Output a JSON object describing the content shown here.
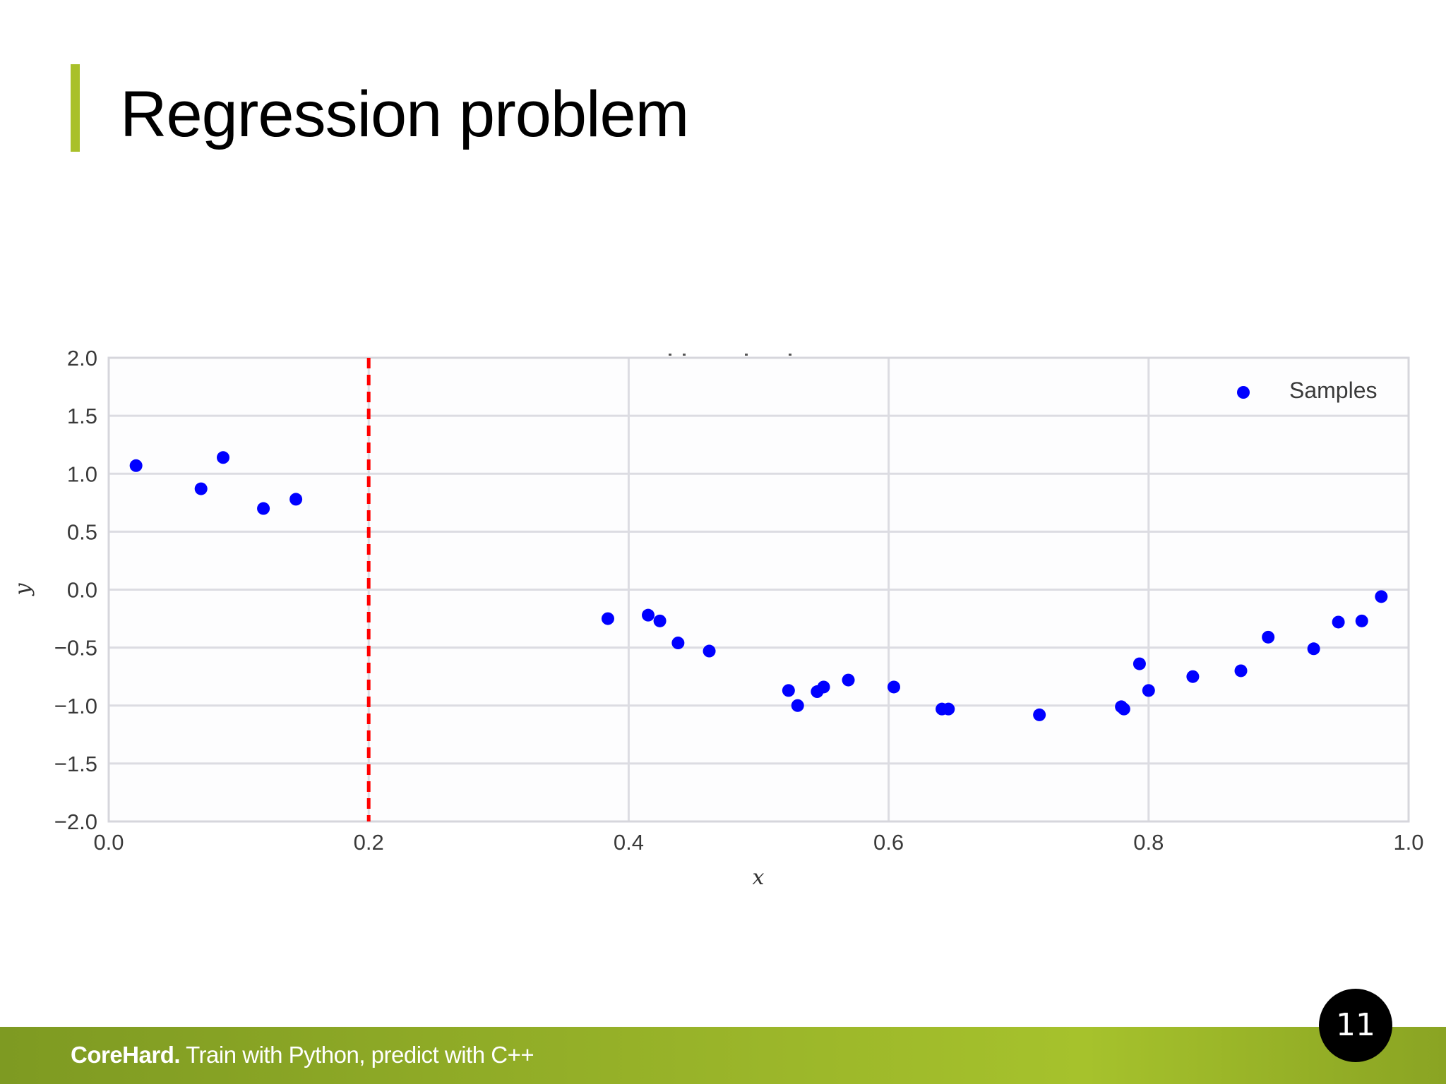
{
  "slide": {
    "title": "Regression problem",
    "accent_color": "#a9c02a",
    "page_number": "11"
  },
  "footer": {
    "brand": "CoreHard.",
    "tagline": " Train with Python, predict with C++"
  },
  "chart_data": {
    "type": "scatter",
    "title": "",
    "xlabel": "x",
    "ylabel": "y",
    "xlim": [
      0.0,
      1.0
    ],
    "ylim": [
      -2.0,
      2.0
    ],
    "x_ticks": [
      "0.0",
      "0.2",
      "0.4",
      "0.6",
      "0.8",
      "1.0"
    ],
    "y_ticks": [
      "2.0",
      "1.5",
      "1.0",
      "0.5",
      "0.0",
      "−0.5",
      "−1.0",
      "−1.5",
      "−2.0"
    ],
    "grid": true,
    "legend_position": "upper right",
    "series": [
      {
        "name": "Samples",
        "color": "#0000ff",
        "marker": "circle",
        "x": [
          0.021,
          0.071,
          0.088,
          0.119,
          0.144,
          0.384,
          0.415,
          0.424,
          0.438,
          0.462,
          0.523,
          0.53,
          0.545,
          0.55,
          0.569,
          0.604,
          0.641,
          0.646,
          0.716,
          0.779,
          0.781,
          0.793,
          0.8,
          0.834,
          0.871,
          0.892,
          0.927,
          0.946,
          0.964,
          0.979
        ],
        "y": [
          1.07,
          0.87,
          1.14,
          0.7,
          0.78,
          -0.25,
          -0.22,
          -0.27,
          -0.46,
          -0.53,
          -0.87,
          -1.0,
          -0.88,
          -0.84,
          -0.78,
          -0.84,
          -1.03,
          -1.03,
          -1.08,
          -1.01,
          -1.03,
          -0.64,
          -0.87,
          -0.75,
          -0.7,
          -0.41,
          -0.51,
          -0.28,
          -0.27,
          -0.06
        ]
      }
    ],
    "annotations": [
      {
        "type": "vline",
        "x": 0.2,
        "color": "#ff0000",
        "style": "dashed"
      }
    ]
  }
}
